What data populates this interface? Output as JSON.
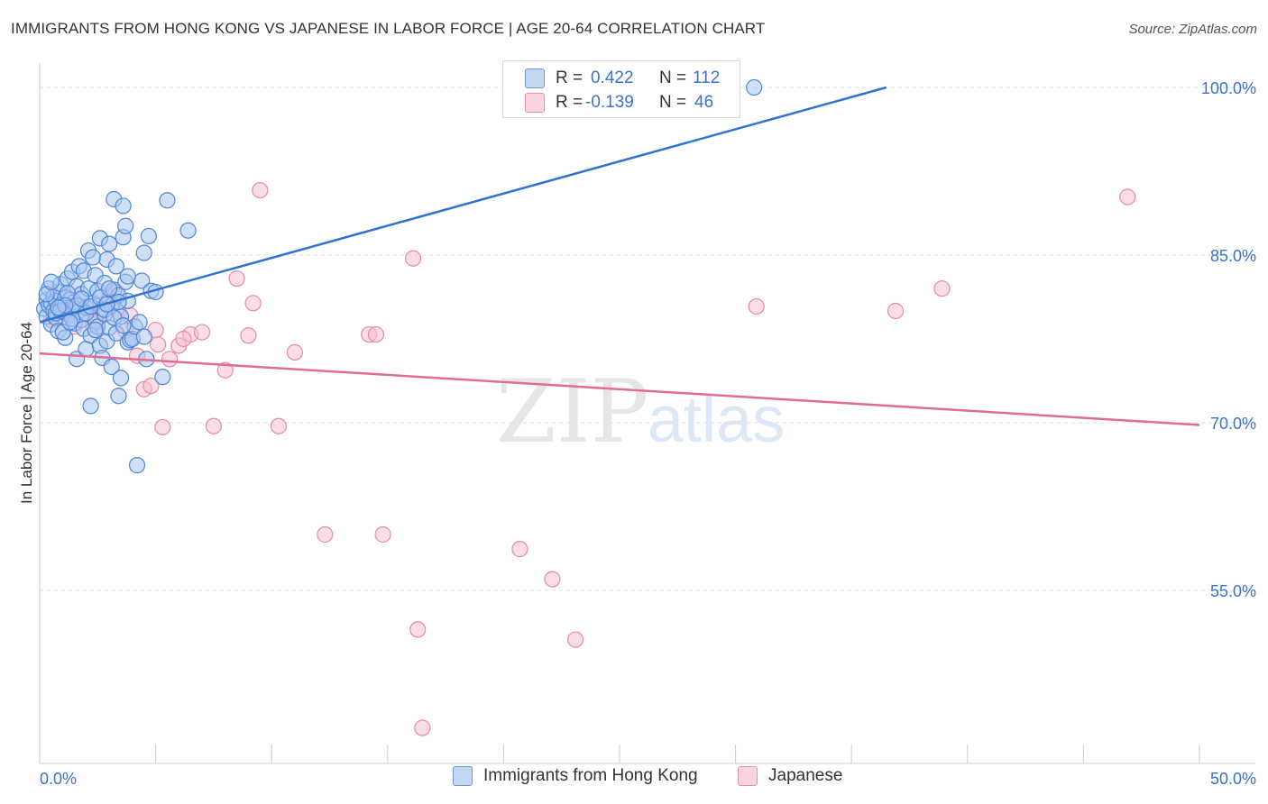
{
  "title": "IMMIGRANTS FROM HONG KONG VS JAPANESE IN LABOR FORCE | AGE 20-64 CORRELATION CHART",
  "source": "Source: ZipAtlas.com",
  "watermark": {
    "zip": "ZIP",
    "atlas": "atlas"
  },
  "legend_top": {
    "rows": [
      {
        "r_label": "R =",
        "r_value": "0.422",
        "n_label": "N =",
        "n_value": "112"
      },
      {
        "r_label": "R =",
        "r_value": "-0.139",
        "n_label": "N =",
        "n_value": "46"
      }
    ]
  },
  "legend_bottom": {
    "items": [
      {
        "label": "Immigrants from Hong Kong"
      },
      {
        "label": "Japanese"
      }
    ]
  },
  "colors": {
    "blue_fill": "#a9c6f0",
    "blue_stroke": "#4f86d4",
    "blue_line": "#2f74d0",
    "pink_fill": "#f5c1d2",
    "pink_stroke": "#e58aa9",
    "pink_line": "#e06b95",
    "tick_text": "#3b73c8",
    "grid": "#dcdcdc"
  },
  "chart_data": {
    "type": "scatter",
    "title": "IMMIGRANTS FROM HONG KONG VS JAPANESE IN LABOR FORCE | AGE 20-64 CORRELATION CHART",
    "xlabel": "",
    "ylabel": "In Labor Force | Age 20-64",
    "xlim": [
      0,
      50
    ],
    "ylim": [
      40,
      101.5
    ],
    "x_tick_labels": [
      {
        "value": 0,
        "label": "0.0%"
      },
      {
        "value": 50,
        "label": "50.0%"
      }
    ],
    "y_tick_labels": [
      {
        "value": 100,
        "label": "100.0%"
      },
      {
        "value": 85,
        "label": "85.0%"
      },
      {
        "value": 70,
        "label": "70.0%"
      },
      {
        "value": 55,
        "label": "55.0%"
      }
    ],
    "series": [
      {
        "name": "Immigrants from Hong Kong",
        "R": 0.422,
        "N": 112,
        "trend": {
          "x": [
            0,
            36.5
          ],
          "y": [
            79.0,
            100.0
          ]
        },
        "points": [
          [
            0.2,
            80.2
          ],
          [
            0.3,
            81.0
          ],
          [
            0.3,
            79.5
          ],
          [
            0.4,
            80.5
          ],
          [
            0.4,
            82.0
          ],
          [
            0.5,
            78.8
          ],
          [
            0.5,
            80.7
          ],
          [
            0.6,
            81.3
          ],
          [
            0.6,
            80.0
          ],
          [
            0.7,
            79.4
          ],
          [
            0.7,
            80.9
          ],
          [
            0.8,
            78.2
          ],
          [
            0.8,
            81.7
          ],
          [
            0.9,
            80.4
          ],
          [
            0.9,
            82.4
          ],
          [
            1.0,
            79.9
          ],
          [
            1.0,
            80.6
          ],
          [
            1.1,
            77.6
          ],
          [
            1.1,
            81.2
          ],
          [
            1.2,
            80.1
          ],
          [
            1.2,
            82.9
          ],
          [
            1.3,
            79.6
          ],
          [
            1.3,
            81.0
          ],
          [
            1.4,
            80.3
          ],
          [
            1.4,
            83.5
          ],
          [
            1.5,
            78.9
          ],
          [
            1.5,
            80.8
          ],
          [
            1.6,
            75.7
          ],
          [
            1.6,
            82.2
          ],
          [
            1.7,
            80.0
          ],
          [
            1.7,
            84.0
          ],
          [
            1.8,
            79.2
          ],
          [
            1.8,
            81.5
          ],
          [
            1.9,
            78.4
          ],
          [
            1.9,
            83.6
          ],
          [
            2.0,
            76.6
          ],
          [
            2.0,
            80.3
          ],
          [
            2.1,
            85.4
          ],
          [
            2.1,
            82.0
          ],
          [
            2.2,
            71.5
          ],
          [
            2.2,
            77.8
          ],
          [
            2.3,
            80.7
          ],
          [
            2.3,
            84.8
          ],
          [
            2.4,
            79.1
          ],
          [
            2.4,
            83.2
          ],
          [
            2.5,
            78.6
          ],
          [
            2.5,
            81.8
          ],
          [
            2.6,
            76.9
          ],
          [
            2.6,
            86.5
          ],
          [
            2.7,
            75.8
          ],
          [
            2.7,
            80.2
          ],
          [
            2.8,
            79.7
          ],
          [
            2.8,
            82.5
          ],
          [
            2.9,
            77.3
          ],
          [
            2.9,
            84.6
          ],
          [
            3.0,
            78.5
          ],
          [
            3.0,
            86.0
          ],
          [
            3.1,
            80.5
          ],
          [
            3.1,
            75.0
          ],
          [
            3.2,
            81.9
          ],
          [
            3.2,
            90.0
          ],
          [
            3.3,
            78.0
          ],
          [
            3.3,
            84.0
          ],
          [
            3.4,
            72.4
          ],
          [
            3.4,
            81.4
          ],
          [
            3.5,
            74.0
          ],
          [
            3.5,
            79.5
          ],
          [
            3.6,
            89.4
          ],
          [
            3.6,
            86.6
          ],
          [
            3.7,
            87.6
          ],
          [
            3.7,
            82.6
          ],
          [
            3.8,
            77.2
          ],
          [
            3.8,
            80.9
          ],
          [
            3.9,
            77.4
          ],
          [
            4.0,
            77.5
          ],
          [
            4.1,
            78.6
          ],
          [
            4.2,
            66.2
          ],
          [
            4.3,
            79.0
          ],
          [
            4.4,
            82.7
          ],
          [
            4.5,
            77.7
          ],
          [
            4.5,
            85.2
          ],
          [
            4.6,
            75.7
          ],
          [
            4.7,
            86.7
          ],
          [
            4.8,
            81.8
          ],
          [
            5.0,
            81.7
          ],
          [
            5.3,
            74.1
          ],
          [
            5.5,
            89.9
          ],
          [
            6.4,
            87.2
          ],
          [
            30.8,
            100.0
          ],
          [
            0.3,
            81.5
          ],
          [
            0.5,
            82.6
          ],
          [
            0.7,
            79.8
          ],
          [
            0.9,
            80.0
          ],
          [
            1.0,
            78.1
          ],
          [
            1.2,
            81.6
          ],
          [
            1.4,
            79.3
          ],
          [
            1.6,
            80.5
          ],
          [
            1.8,
            81.1
          ],
          [
            2.0,
            79.8
          ],
          [
            2.2,
            80.4
          ],
          [
            2.4,
            78.3
          ],
          [
            2.6,
            81.2
          ],
          [
            2.8,
            80.1
          ],
          [
            3.0,
            82.0
          ],
          [
            3.2,
            79.4
          ],
          [
            3.4,
            80.8
          ],
          [
            3.6,
            78.7
          ],
          [
            3.8,
            83.1
          ],
          [
            1.1,
            80.5
          ],
          [
            1.3,
            79.0
          ],
          [
            0.8,
            80.3
          ],
          [
            2.9,
            80.6
          ]
        ]
      },
      {
        "name": "Japanese",
        "R": -0.139,
        "N": 46,
        "trend": {
          "x": [
            0,
            50
          ],
          "y": [
            76.2,
            69.8
          ]
        },
        "points": [
          [
            0.5,
            79.2
          ],
          [
            1.0,
            79.5
          ],
          [
            1.5,
            78.6
          ],
          [
            2.0,
            80.4
          ],
          [
            2.5,
            79.0
          ],
          [
            3.0,
            81.3
          ],
          [
            3.2,
            80.6
          ],
          [
            3.4,
            79.9
          ],
          [
            3.7,
            78.2
          ],
          [
            3.9,
            79.6
          ],
          [
            4.2,
            76.0
          ],
          [
            4.5,
            73.0
          ],
          [
            4.8,
            73.3
          ],
          [
            5.0,
            78.3
          ],
          [
            5.3,
            69.6
          ],
          [
            5.6,
            75.7
          ],
          [
            6.0,
            76.9
          ],
          [
            6.5,
            77.9
          ],
          [
            7.0,
            78.1
          ],
          [
            7.5,
            69.7
          ],
          [
            8.0,
            74.7
          ],
          [
            8.5,
            82.9
          ],
          [
            9.0,
            77.8
          ],
          [
            9.2,
            80.7
          ],
          [
            9.5,
            90.8
          ],
          [
            10.3,
            69.7
          ],
          [
            11.0,
            76.3
          ],
          [
            12.3,
            60.0
          ],
          [
            14.2,
            77.9
          ],
          [
            14.5,
            77.9
          ],
          [
            14.8,
            60.0
          ],
          [
            16.1,
            84.7
          ],
          [
            16.3,
            51.5
          ],
          [
            16.5,
            42.7
          ],
          [
            20.7,
            58.7
          ],
          [
            22.1,
            56.0
          ],
          [
            23.1,
            50.6
          ],
          [
            30.9,
            80.4
          ],
          [
            36.9,
            80.0
          ],
          [
            38.9,
            82.0
          ],
          [
            46.9,
            90.2
          ],
          [
            2.3,
            78.8
          ],
          [
            2.8,
            80.2
          ],
          [
            3.3,
            81.7
          ],
          [
            6.2,
            77.5
          ],
          [
            5.1,
            77.0
          ]
        ]
      }
    ]
  }
}
